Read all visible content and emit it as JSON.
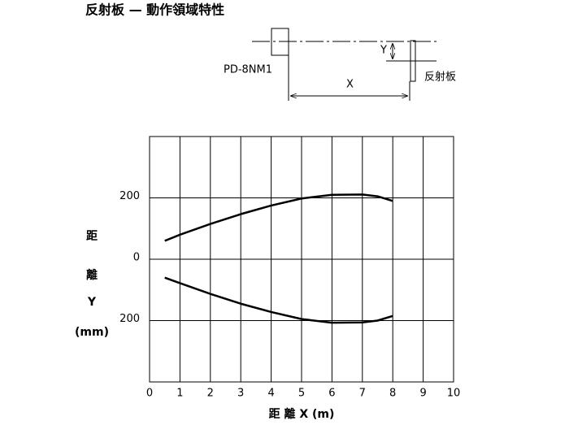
{
  "chart_data": {
    "type": "line",
    "title": "反射板 — 動作領域特性",
    "x_label": "距 離 X (m)",
    "y_label": [
      "距",
      "離",
      "Y",
      "(mm)"
    ],
    "x": [
      0.5,
      1,
      2,
      3,
      4,
      5,
      6,
      7,
      7.5,
      8
    ],
    "series": [
      {
        "color": "#000000",
        "values": [
          60,
          80,
          115,
          147,
          175,
          198,
          210,
          211,
          205,
          190
        ]
      },
      {
        "color": "#000000",
        "values": [
          -60,
          -78,
          -113,
          -145,
          -172,
          -195,
          -207,
          -206,
          -200,
          -185
        ]
      }
    ],
    "xlim": [
      0,
      10
    ],
    "xticks": [
      0,
      1,
      2,
      3,
      4,
      5,
      6,
      7,
      8,
      9,
      10
    ],
    "ylim": [
      -400,
      400
    ],
    "yticks": [
      {
        "value": -200,
        "label": "200"
      },
      0,
      200
    ],
    "grid": true
  },
  "diagram": {
    "sensor_label": "PD-8NM1",
    "x_label": "X",
    "y_label": "Y",
    "reflector_label": "反射板"
  }
}
